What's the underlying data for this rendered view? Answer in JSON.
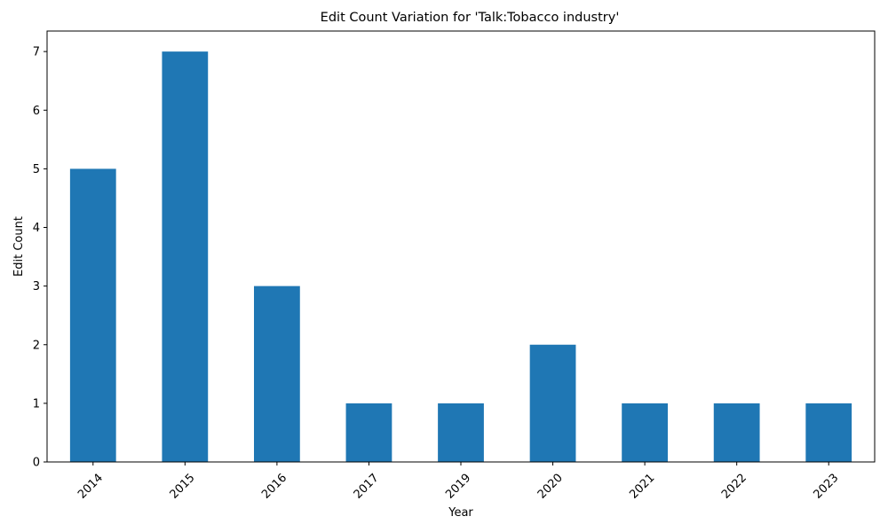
{
  "chart_data": {
    "type": "bar",
    "title": "Edit Count Variation for 'Talk:Tobacco industry'",
    "xlabel": "Year",
    "ylabel": "Edit Count",
    "categories": [
      "2014",
      "2015",
      "2016",
      "2017",
      "2019",
      "2020",
      "2021",
      "2022",
      "2023"
    ],
    "values": [
      5,
      7,
      3,
      1,
      1,
      2,
      1,
      1,
      1
    ],
    "ylim": [
      0,
      7.35
    ],
    "yticks": [
      0,
      1,
      2,
      3,
      4,
      5,
      6,
      7
    ],
    "bar_color": "#1f77b4",
    "grid": false,
    "legend": false
  }
}
